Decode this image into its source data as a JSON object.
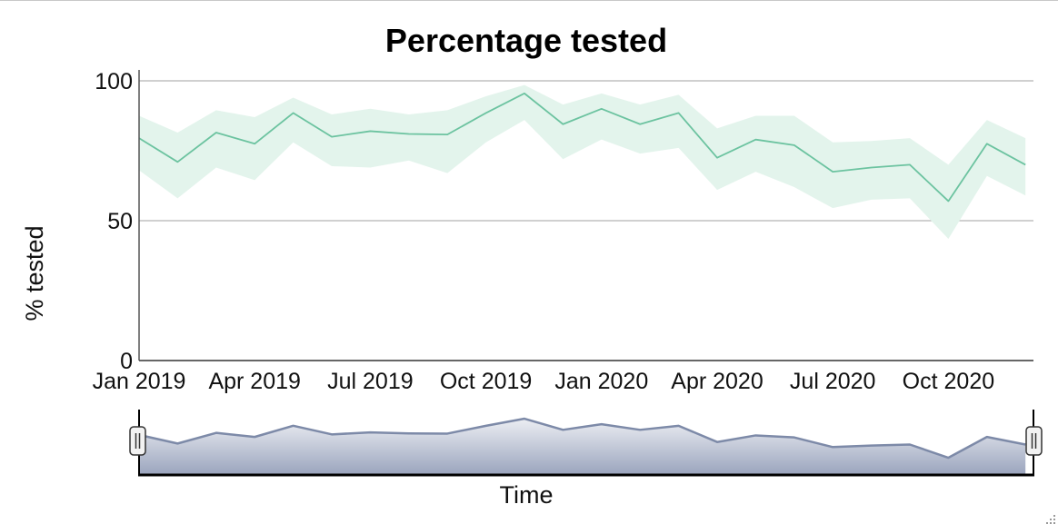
{
  "chart_data": {
    "type": "line",
    "title": "Percentage tested",
    "ylabel": "% tested",
    "xlabel": "",
    "navigator_label": "Time",
    "ylim": [
      0,
      100
    ],
    "y_ticks": [
      0,
      50,
      100
    ],
    "x_tick_labels": [
      "Jan 2019",
      "Apr 2019",
      "Jul 2019",
      "Oct 2019",
      "Jan 2020",
      "Apr 2020",
      "Jul 2020",
      "Oct 2020"
    ],
    "x": [
      "2019-01",
      "2019-02",
      "2019-03",
      "2019-04",
      "2019-05",
      "2019-06",
      "2019-07",
      "2019-08",
      "2019-09",
      "2019-10",
      "2019-11",
      "2019-12",
      "2020-01",
      "2020-02",
      "2020-03",
      "2020-04",
      "2020-05",
      "2020-06",
      "2020-07",
      "2020-08",
      "2020-09",
      "2020-10",
      "2020-11",
      "2020-12"
    ],
    "series": [
      {
        "values": [
          79.5,
          71,
          81.5,
          77.5,
          88.5,
          80,
          82,
          81,
          80.8,
          88.5,
          95.5,
          84.5,
          90,
          84.5,
          88.5,
          72.5,
          79,
          77,
          67.5,
          69,
          70,
          57,
          77.5,
          70
        ],
        "lower": [
          68,
          58,
          69,
          64.5,
          78,
          69.5,
          69,
          71.5,
          67,
          78,
          86,
          72,
          79,
          74,
          76,
          61,
          67.5,
          62,
          54.5,
          57.5,
          58,
          43.5,
          66,
          59
        ],
        "upper": [
          87.5,
          81.5,
          89.5,
          87,
          94,
          88,
          90,
          88,
          89.5,
          94.5,
          98.5,
          91.5,
          95.5,
          91.5,
          95,
          83,
          87.5,
          87.5,
          78,
          78.5,
          79.5,
          70,
          86,
          79.5
        ]
      }
    ],
    "grid": true,
    "colors": {
      "line": "#6cc3a0",
      "band": "#e3f4ec",
      "navigator_line": "#7d8aa8",
      "navigator_fill_top": "#eceef3",
      "navigator_fill_bottom": "#9aa4bd",
      "gridline": "#b5b5b5"
    }
  }
}
